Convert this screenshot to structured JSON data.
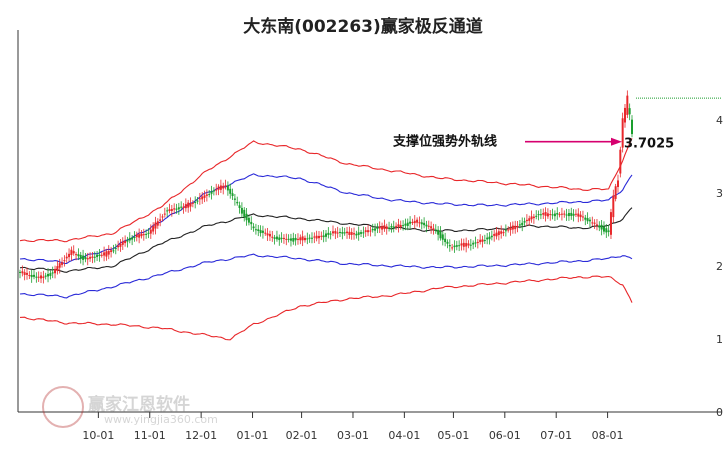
{
  "title": "大东南(002263)赢家极反通道",
  "chart_data": {
    "type": "candlestick-channel",
    "title": "大东南(002263)赢家极反通道",
    "x_ticks": [
      "10-01",
      "11-01",
      "12-01",
      "01-01",
      "02-01",
      "03-01",
      "04-01",
      "05-01",
      "06-01",
      "07-01",
      "08-01"
    ],
    "y_ticks": [
      "0",
      "1",
      "2",
      "3",
      "4"
    ],
    "ylim": [
      0,
      4.4
    ],
    "grid": false,
    "annotation": {
      "label": "支撑位强势外轨线",
      "value": "3.7025",
      "y": 3.7025
    },
    "last_close_line": 4.3,
    "price_anchors": [
      [
        0,
        1.9
      ],
      [
        8,
        1.85
      ],
      [
        14,
        1.9
      ],
      [
        22,
        2.2
      ],
      [
        28,
        2.1
      ],
      [
        36,
        2.15
      ],
      [
        45,
        2.35
      ],
      [
        55,
        2.45
      ],
      [
        62,
        2.75
      ],
      [
        70,
        2.8
      ],
      [
        78,
        2.95
      ],
      [
        88,
        3.1
      ],
      [
        92,
        2.9
      ],
      [
        100,
        2.5
      ],
      [
        108,
        2.4
      ],
      [
        118,
        2.35
      ],
      [
        126,
        2.4
      ],
      [
        134,
        2.45
      ],
      [
        144,
        2.45
      ],
      [
        152,
        2.5
      ],
      [
        160,
        2.55
      ],
      [
        170,
        2.6
      ],
      [
        178,
        2.5
      ],
      [
        184,
        2.25
      ],
      [
        192,
        2.3
      ],
      [
        202,
        2.4
      ],
      [
        212,
        2.55
      ],
      [
        222,
        2.7
      ],
      [
        230,
        2.72
      ],
      [
        240,
        2.68
      ],
      [
        248,
        2.55
      ],
      [
        252,
        2.45
      ],
      [
        254,
        2.9
      ],
      [
        256,
        3.2
      ],
      [
        258,
        4.0
      ],
      [
        260,
        4.25
      ],
      [
        262,
        3.85
      ]
    ],
    "series": [
      {
        "name": "outer-upper",
        "color": "#e8272a",
        "anchors": [
          [
            0,
            2.35
          ],
          [
            20,
            2.35
          ],
          [
            40,
            2.45
          ],
          [
            60,
            2.8
          ],
          [
            80,
            3.3
          ],
          [
            100,
            3.7
          ],
          [
            120,
            3.6
          ],
          [
            140,
            3.4
          ],
          [
            160,
            3.3
          ],
          [
            180,
            3.2
          ],
          [
            200,
            3.15
          ],
          [
            220,
            3.1
          ],
          [
            240,
            3.05
          ],
          [
            252,
            3.05
          ],
          [
            258,
            3.45
          ],
          [
            262,
            3.75
          ]
        ]
      },
      {
        "name": "inner-upper",
        "color": "#2a2ad8",
        "anchors": [
          [
            0,
            2.1
          ],
          [
            20,
            2.05
          ],
          [
            40,
            2.25
          ],
          [
            60,
            2.6
          ],
          [
            80,
            3.0
          ],
          [
            100,
            3.25
          ],
          [
            120,
            3.2
          ],
          [
            140,
            3.0
          ],
          [
            160,
            2.9
          ],
          [
            180,
            2.85
          ],
          [
            200,
            2.83
          ],
          [
            220,
            2.85
          ],
          [
            240,
            2.88
          ],
          [
            252,
            2.9
          ],
          [
            258,
            3.05
          ],
          [
            262,
            3.25
          ]
        ]
      },
      {
        "name": "middle",
        "color": "#222222",
        "anchors": [
          [
            0,
            1.98
          ],
          [
            20,
            1.93
          ],
          [
            40,
            2.0
          ],
          [
            60,
            2.3
          ],
          [
            80,
            2.55
          ],
          [
            100,
            2.7
          ],
          [
            120,
            2.65
          ],
          [
            140,
            2.58
          ],
          [
            160,
            2.52
          ],
          [
            180,
            2.48
          ],
          [
            200,
            2.5
          ],
          [
            220,
            2.55
          ],
          [
            240,
            2.52
          ],
          [
            252,
            2.55
          ],
          [
            258,
            2.65
          ],
          [
            262,
            2.8
          ]
        ]
      },
      {
        "name": "inner-lower",
        "color": "#2a2ad8",
        "anchors": [
          [
            0,
            1.62
          ],
          [
            20,
            1.58
          ],
          [
            40,
            1.72
          ],
          [
            60,
            1.88
          ],
          [
            80,
            2.05
          ],
          [
            100,
            2.15
          ],
          [
            120,
            2.1
          ],
          [
            140,
            2.03
          ],
          [
            160,
            2.0
          ],
          [
            180,
            1.98
          ],
          [
            200,
            2.0
          ],
          [
            220,
            2.03
          ],
          [
            240,
            2.07
          ],
          [
            252,
            2.1
          ],
          [
            258,
            2.15
          ],
          [
            262,
            2.1
          ]
        ]
      },
      {
        "name": "outer-lower",
        "color": "#e8272a",
        "anchors": [
          [
            0,
            1.3
          ],
          [
            20,
            1.22
          ],
          [
            40,
            1.2
          ],
          [
            60,
            1.15
          ],
          [
            80,
            1.05
          ],
          [
            90,
            1.0
          ],
          [
            100,
            1.2
          ],
          [
            120,
            1.45
          ],
          [
            140,
            1.55
          ],
          [
            160,
            1.6
          ],
          [
            180,
            1.7
          ],
          [
            200,
            1.75
          ],
          [
            220,
            1.8
          ],
          [
            240,
            1.85
          ],
          [
            252,
            1.85
          ],
          [
            258,
            1.75
          ],
          [
            262,
            1.5
          ]
        ]
      }
    ],
    "colors": {
      "up": "#e8272a",
      "down": "#1a9e2e",
      "annotation_arrow": "#d6006f"
    }
  },
  "watermark": {
    "name": "赢家江恩软件",
    "url": "www.yingjia360.com"
  }
}
